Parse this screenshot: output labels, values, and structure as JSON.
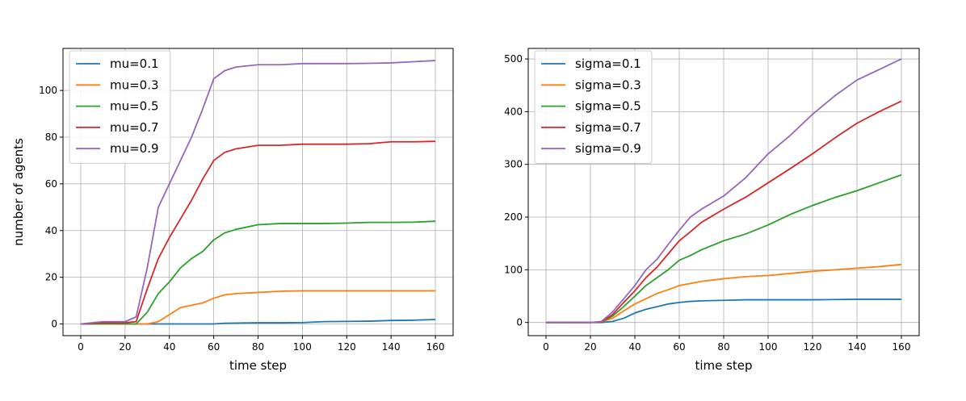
{
  "chart_data": [
    {
      "type": "line",
      "xlabel": "time step",
      "ylabel": "number of agents",
      "xlim": [
        -8,
        168
      ],
      "ylim": [
        -5,
        118
      ],
      "xticks": [
        0,
        20,
        40,
        60,
        80,
        100,
        120,
        140,
        160
      ],
      "yticks": [
        0,
        20,
        40,
        60,
        80,
        100
      ],
      "grid": true,
      "legend_position": "top-left",
      "x": [
        0,
        10,
        20,
        25,
        30,
        35,
        40,
        45,
        50,
        55,
        60,
        65,
        70,
        80,
        90,
        100,
        110,
        120,
        130,
        140,
        150,
        160
      ],
      "series": [
        {
          "name": "mu=0.1",
          "color": "#1f77b4",
          "values": [
            0,
            0,
            0,
            0,
            0,
            0,
            0,
            0,
            0,
            0,
            0,
            0.3,
            0.4,
            0.5,
            0.5,
            0.6,
            1.0,
            1.1,
            1.2,
            1.5,
            1.6,
            1.9
          ]
        },
        {
          "name": "mu=0.3",
          "color": "#ff7f0e",
          "values": [
            0,
            0,
            0,
            0,
            0,
            1,
            4,
            7,
            8,
            9,
            11,
            12.5,
            13,
            13.5,
            14,
            14.2,
            14.2,
            14.2,
            14.2,
            14.2,
            14.2,
            14.2
          ]
        },
        {
          "name": "mu=0.5",
          "color": "#2ca02c",
          "values": [
            0,
            0,
            0,
            0,
            5,
            13,
            18,
            24,
            28,
            31,
            36,
            39,
            40.5,
            42.5,
            43,
            43,
            43,
            43.2,
            43.5,
            43.5,
            43.6,
            44
          ]
        },
        {
          "name": "mu=0.7",
          "color": "#d62728",
          "values": [
            0,
            0.5,
            0.5,
            1,
            15,
            28,
            37,
            45,
            53,
            62,
            70,
            73.5,
            75,
            76.5,
            76.5,
            77,
            77,
            77,
            77.2,
            78,
            78,
            78.2
          ]
        },
        {
          "name": "mu=0.9",
          "color": "#9467bd",
          "values": [
            0,
            1,
            1,
            3,
            24,
            50,
            60,
            70,
            80,
            92,
            105,
            108.5,
            110,
            111,
            111,
            111.5,
            111.5,
            111.5,
            111.6,
            111.8,
            112.3,
            112.8
          ]
        }
      ]
    },
    {
      "type": "line",
      "xlabel": "time step",
      "ylabel": "",
      "xlim": [
        -8,
        168
      ],
      "ylim": [
        -25,
        520
      ],
      "xticks": [
        0,
        20,
        40,
        60,
        80,
        100,
        120,
        140,
        160
      ],
      "yticks": [
        0,
        100,
        200,
        300,
        400,
        500
      ],
      "grid": true,
      "legend_position": "top-left",
      "x": [
        0,
        10,
        20,
        25,
        30,
        35,
        40,
        45,
        50,
        55,
        60,
        65,
        70,
        80,
        90,
        100,
        110,
        120,
        130,
        140,
        150,
        160
      ],
      "series": [
        {
          "name": "sigma=0.1",
          "color": "#1f77b4",
          "values": [
            0,
            0,
            0,
            0,
            2,
            8,
            18,
            25,
            30,
            35,
            38,
            40,
            41,
            42,
            43,
            43,
            43,
            43,
            43.5,
            44,
            44,
            44
          ]
        },
        {
          "name": "sigma=0.3",
          "color": "#ff7f0e",
          "values": [
            0,
            0,
            0,
            1,
            8,
            22,
            35,
            45,
            55,
            62,
            70,
            74,
            78,
            83,
            87,
            89,
            93,
            97,
            100,
            103,
            106,
            110
          ]
        },
        {
          "name": "sigma=0.5",
          "color": "#2ca02c",
          "values": [
            0,
            0,
            0,
            1,
            12,
            30,
            50,
            70,
            85,
            100,
            118,
            127,
            138,
            155,
            168,
            185,
            205,
            222,
            237,
            250,
            265,
            280
          ]
        },
        {
          "name": "sigma=0.7",
          "color": "#d62728",
          "values": [
            0,
            0,
            0,
            1,
            15,
            38,
            60,
            85,
            105,
            130,
            155,
            172,
            190,
            215,
            238,
            265,
            292,
            320,
            350,
            378,
            400,
            420
          ]
        },
        {
          "name": "sigma=0.9",
          "color": "#9467bd",
          "values": [
            0,
            0,
            0,
            2,
            20,
            45,
            70,
            100,
            120,
            148,
            175,
            200,
            215,
            240,
            275,
            320,
            355,
            395,
            430,
            460,
            480,
            500
          ]
        }
      ]
    }
  ]
}
